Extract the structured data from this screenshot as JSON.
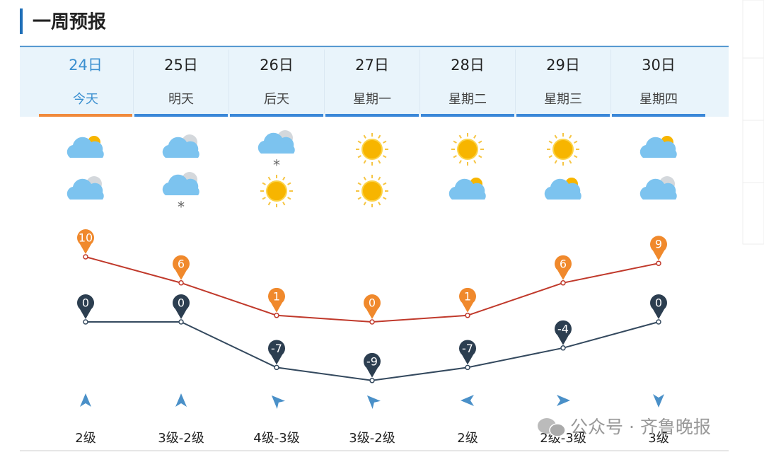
{
  "header": {
    "title": "一周预报"
  },
  "days": [
    {
      "date": "24日",
      "label": "今天",
      "wind": "2级"
    },
    {
      "date": "25日",
      "label": "明天",
      "wind": "3级-2级"
    },
    {
      "date": "26日",
      "label": "后天",
      "wind": "4级-3级"
    },
    {
      "date": "27日",
      "label": "星期一",
      "wind": "3级-2级"
    },
    {
      "date": "28日",
      "label": "星期二",
      "wind": "2级"
    },
    {
      "date": "29日",
      "label": "星期三",
      "wind": "2级-3级"
    },
    {
      "date": "30日",
      "label": "星期四",
      "wind": "3级"
    }
  ],
  "temperature": {
    "high": [
      10,
      6,
      1,
      0,
      1,
      6,
      9
    ],
    "low": [
      0,
      0,
      -7,
      -9,
      -7,
      -4,
      0
    ],
    "high_color": "#c0392b",
    "high_pin_color": "#f0892c",
    "low_color": "#34495e",
    "low_pin_color": "#2c3e50"
  },
  "watermark": "公众号 · 齐鲁晚报"
}
